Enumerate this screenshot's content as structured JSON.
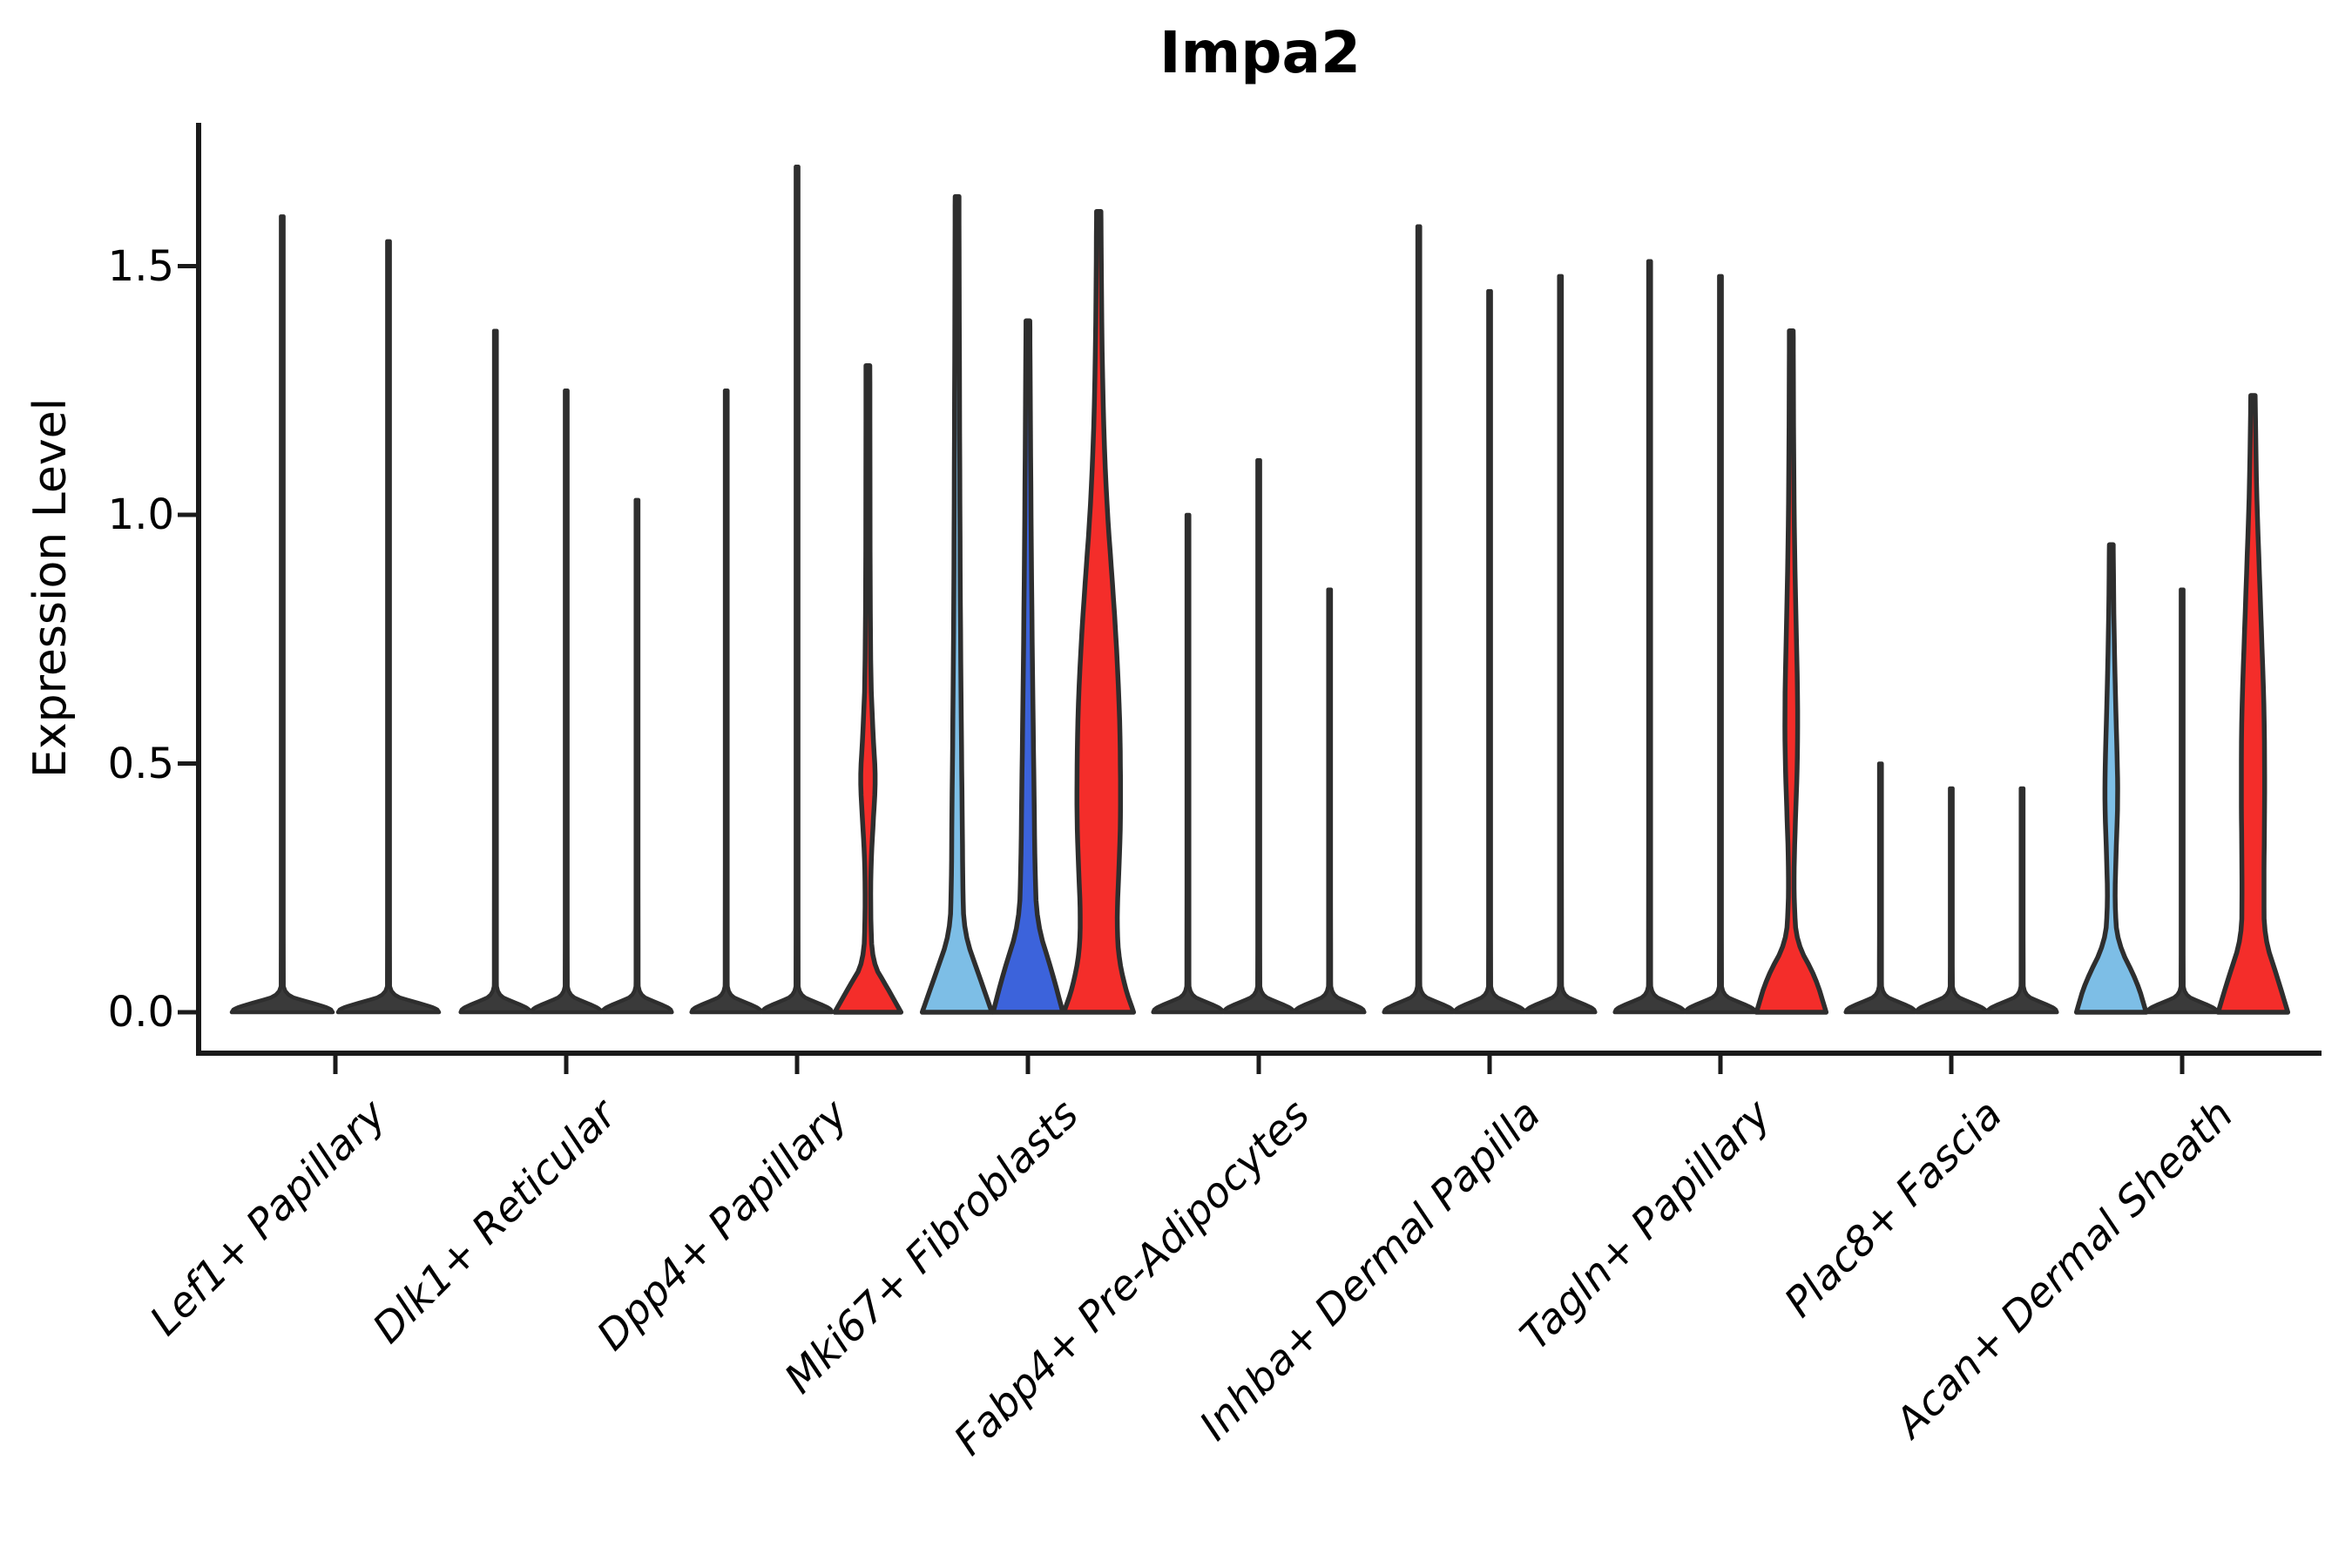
{
  "title": "Impa2",
  "chart_data": {
    "type": "violin",
    "title": "Impa2",
    "xlabel": "",
    "ylabel": "Expression Level",
    "ylim": [
      0,
      1.79
    ],
    "yticks": [
      0.0,
      0.5,
      1.0,
      1.5
    ],
    "ytick_labels": [
      "0.0",
      "0.5",
      "1.0",
      "1.5"
    ],
    "legend": "none",
    "grid": false,
    "colors": {
      "red": "#F42D2A",
      "light_blue": "#7DBEE6",
      "dark_blue": "#3C63DB",
      "spike": "#3A3A3A",
      "outline": "#2E2E2E"
    },
    "categories": [
      "Lef1+ Papillary",
      "Dlk1+ Reticular",
      "Dpp4+ Papillary",
      "Mki67+ Fibroblasts",
      "Fabp4+ Pre-Adipocytes",
      "Inhba+ Dermal Papilla",
      "Tagln+ Papillary",
      "Plac8+ Fascia",
      "Acan+ Dermal Sheath"
    ],
    "groups": [
      {
        "label": "Lef1+ Papillary",
        "violins": [
          {
            "max": 1.6,
            "shape": "spike",
            "color": "spike"
          },
          {
            "max": 1.55,
            "shape": "spike",
            "color": "spike"
          }
        ]
      },
      {
        "label": "Dlk1+ Reticular",
        "violins": [
          {
            "max": 1.37,
            "shape": "spike",
            "color": "spike"
          },
          {
            "max": 1.25,
            "shape": "spike",
            "color": "spike"
          },
          {
            "max": 1.03,
            "shape": "spike",
            "color": "spike"
          }
        ]
      },
      {
        "label": "Dpp4+ Papillary",
        "violins": [
          {
            "max": 1.25,
            "shape": "spike",
            "color": "spike"
          },
          {
            "max": 1.7,
            "shape": "spike",
            "color": "spike"
          },
          {
            "max": 1.3,
            "shape": "kde",
            "color": "red",
            "profile": [
              [
                1.3,
                2.2
              ],
              [
                0.7,
                2.6
              ],
              [
                0.55,
                6
              ],
              [
                0.47,
                9
              ],
              [
                0.38,
                6
              ],
              [
                0.3,
                3.5
              ],
              [
                0.2,
                3
              ],
              [
                0.1,
                5
              ],
              [
                0.05,
                22
              ],
              [
                0.0,
                38
              ]
            ]
          }
        ]
      },
      {
        "label": "Mki67+ Fibroblasts",
        "violins": [
          {
            "max": 1.64,
            "shape": "kde",
            "color": "light_blue",
            "profile": [
              [
                1.64,
                2.2
              ],
              [
                1.35,
                2.6
              ],
              [
                1.05,
                3.2
              ],
              [
                0.8,
                3.8
              ],
              [
                0.55,
                5
              ],
              [
                0.38,
                6
              ],
              [
                0.26,
                6.5
              ],
              [
                0.16,
                8
              ],
              [
                0.07,
                26
              ],
              [
                0.0,
                40
              ]
            ]
          },
          {
            "max": 1.39,
            "shape": "kde",
            "color": "dark_blue",
            "profile": [
              [
                1.39,
                2.2
              ],
              [
                1.15,
                3
              ],
              [
                0.9,
                4
              ],
              [
                0.65,
                5.5
              ],
              [
                0.45,
                7
              ],
              [
                0.3,
                8
              ],
              [
                0.18,
                10
              ],
              [
                0.08,
                28
              ],
              [
                0.0,
                40
              ]
            ]
          },
          {
            "max": 1.61,
            "shape": "kde",
            "color": "red",
            "profile": [
              [
                1.61,
                2.5
              ],
              [
                1.35,
                3.5
              ],
              [
                1.15,
                6
              ],
              [
                1.0,
                10
              ],
              [
                0.88,
                15
              ],
              [
                0.75,
                20
              ],
              [
                0.6,
                24
              ],
              [
                0.48,
                25
              ],
              [
                0.38,
                25
              ],
              [
                0.28,
                23
              ],
              [
                0.2,
                21
              ],
              [
                0.12,
                22
              ],
              [
                0.05,
                30
              ],
              [
                0.0,
                40
              ]
            ]
          }
        ]
      },
      {
        "label": "Fabp4+ Pre-Adipocytes",
        "violins": [
          {
            "max": 1.0,
            "shape": "spike",
            "color": "spike"
          },
          {
            "max": 1.11,
            "shape": "spike",
            "color": "spike"
          },
          {
            "max": 0.85,
            "shape": "spike",
            "color": "spike"
          }
        ]
      },
      {
        "label": "Inhba+ Dermal Papilla",
        "violins": [
          {
            "max": 1.58,
            "shape": "spike",
            "color": "spike"
          },
          {
            "max": 1.45,
            "shape": "spike",
            "color": "spike"
          },
          {
            "max": 1.48,
            "shape": "spike",
            "color": "spike"
          }
        ]
      },
      {
        "label": "Tagln+ Papillary",
        "violins": [
          {
            "max": 1.51,
            "shape": "spike",
            "color": "spike"
          },
          {
            "max": 1.48,
            "shape": "spike",
            "color": "spike"
          },
          {
            "max": 1.37,
            "shape": "kde",
            "color": "red",
            "profile": [
              [
                1.37,
                2.2
              ],
              [
                1.15,
                2.6
              ],
              [
                0.95,
                3.5
              ],
              [
                0.78,
                5.5
              ],
              [
                0.62,
                7.5
              ],
              [
                0.5,
                7
              ],
              [
                0.4,
                5
              ],
              [
                0.3,
                3.2
              ],
              [
                0.22,
                3.2
              ],
              [
                0.14,
                6
              ],
              [
                0.07,
                28
              ],
              [
                0.0,
                40
              ]
            ]
          }
        ]
      },
      {
        "label": "Plac8+ Fascia",
        "violins": [
          {
            "max": 0.5,
            "shape": "spike",
            "color": "spike"
          },
          {
            "max": 0.45,
            "shape": "spike",
            "color": "spike"
          },
          {
            "max": 0.45,
            "shape": "spike",
            "color": "spike"
          }
        ]
      },
      {
        "label": "Acan+ Dermal Sheath",
        "violins": [
          {
            "max": 0.94,
            "shape": "kde",
            "color": "light_blue",
            "profile": [
              [
                0.94,
                2.2
              ],
              [
                0.78,
                3
              ],
              [
                0.62,
                5
              ],
              [
                0.5,
                7
              ],
              [
                0.42,
                7.5
              ],
              [
                0.32,
                5.5
              ],
              [
                0.22,
                4
              ],
              [
                0.14,
                7
              ],
              [
                0.06,
                30
              ],
              [
                0.0,
                40
              ]
            ]
          },
          {
            "max": 0.85,
            "shape": "spike",
            "color": "spike"
          },
          {
            "max": 1.24,
            "shape": "kde",
            "color": "red",
            "profile": [
              [
                1.24,
                2.5
              ],
              [
                1.05,
                4
              ],
              [
                0.9,
                7
              ],
              [
                0.75,
                10
              ],
              [
                0.6,
                13
              ],
              [
                0.45,
                13.5
              ],
              [
                0.35,
                13
              ],
              [
                0.25,
                12.5
              ],
              [
                0.15,
                13
              ],
              [
                0.07,
                28
              ],
              [
                0.0,
                40
              ]
            ]
          }
        ]
      }
    ]
  }
}
